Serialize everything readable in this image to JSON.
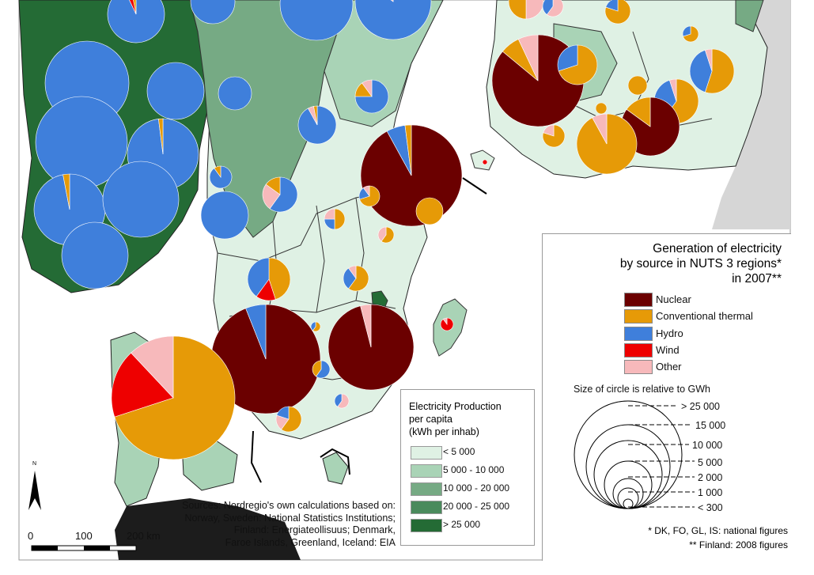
{
  "main_legend": {
    "title_lines": [
      "Generation of electricity",
      "by source in NUTS 3 regions*",
      "in 2007**"
    ],
    "sources": [
      {
        "label": "Nuclear",
        "color": "#6b0000"
      },
      {
        "label": "Conventional thermal",
        "color": "#e69a07"
      },
      {
        "label": "Hydro",
        "color": "#3f7fdb"
      },
      {
        "label": "Wind",
        "color": "#ee0000"
      },
      {
        "label": "Other",
        "color": "#f7b9bb"
      }
    ],
    "size_title": "Size of circle is relative to GWh",
    "size_labels": [
      "> 25 000",
      "15 000",
      "10 000",
      "5 000",
      "2 000",
      "1 000",
      "< 300"
    ],
    "footnotes": [
      "* DK, FO, GL, IS: national figures",
      "** Finland: 2008 figures"
    ]
  },
  "per_capita_legend": {
    "title_lines": [
      "Electricity Production",
      "per capita",
      "(kWh per inhab)"
    ],
    "classes": [
      {
        "label": "< 5 000",
        "color": "#dff1e4"
      },
      {
        "label": "5 000 - 10 000",
        "color": "#a9d3b6"
      },
      {
        "label": "10 000 - 20 000",
        "color": "#76aa84"
      },
      {
        "label": "20 000 - 25 000",
        "color": "#4a8a5c"
      },
      {
        "label": "> 25 000",
        "color": "#246b35"
      }
    ]
  },
  "sources_text": [
    "Sources: Nordregio's own calculations based on:",
    "Norway, Sweden: National Statistics Institutions;",
    "Finland: Energiateollisuus; Denmark,",
    "Faroe Islands, Greenland, Iceland: EIA"
  ],
  "scale_bar": {
    "labels": [
      "0",
      "100",
      "200 km"
    ]
  },
  "north_arrow": {
    "label": "N"
  },
  "colors": {
    "sea": "#ffffff",
    "neighbour_land": "#cfcfcf",
    "land_low": "#dff1e4",
    "land_mid": "#a9d3b6",
    "land_high": "#76aa84",
    "land_top": "#246b35",
    "border": "#555555"
  }
}
